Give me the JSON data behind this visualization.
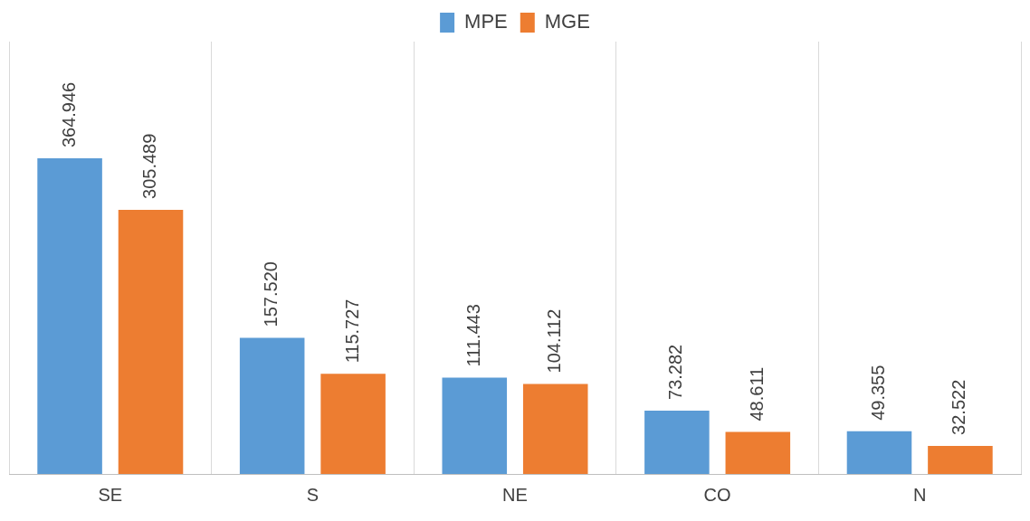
{
  "chart_data": {
    "type": "bar",
    "categories": [
      "SE",
      "S",
      "NE",
      "CO",
      "N"
    ],
    "series": [
      {
        "name": "MPE",
        "color": "#5b9bd5",
        "values": [
          364.946,
          157.52,
          111.443,
          73.282,
          49.355
        ],
        "value_labels": [
          "364.946",
          "157.520",
          "111.443",
          "73.282",
          "49.355"
        ]
      },
      {
        "name": "MGE",
        "color": "#ed7d31",
        "values": [
          305.489,
          115.727,
          104.112,
          48.611,
          32.522
        ],
        "value_labels": [
          "305.489",
          "115.727",
          "104.112",
          "48.611",
          "32.522"
        ]
      }
    ],
    "grid": "x",
    "legend": "top",
    "tick_labels": "x"
  }
}
